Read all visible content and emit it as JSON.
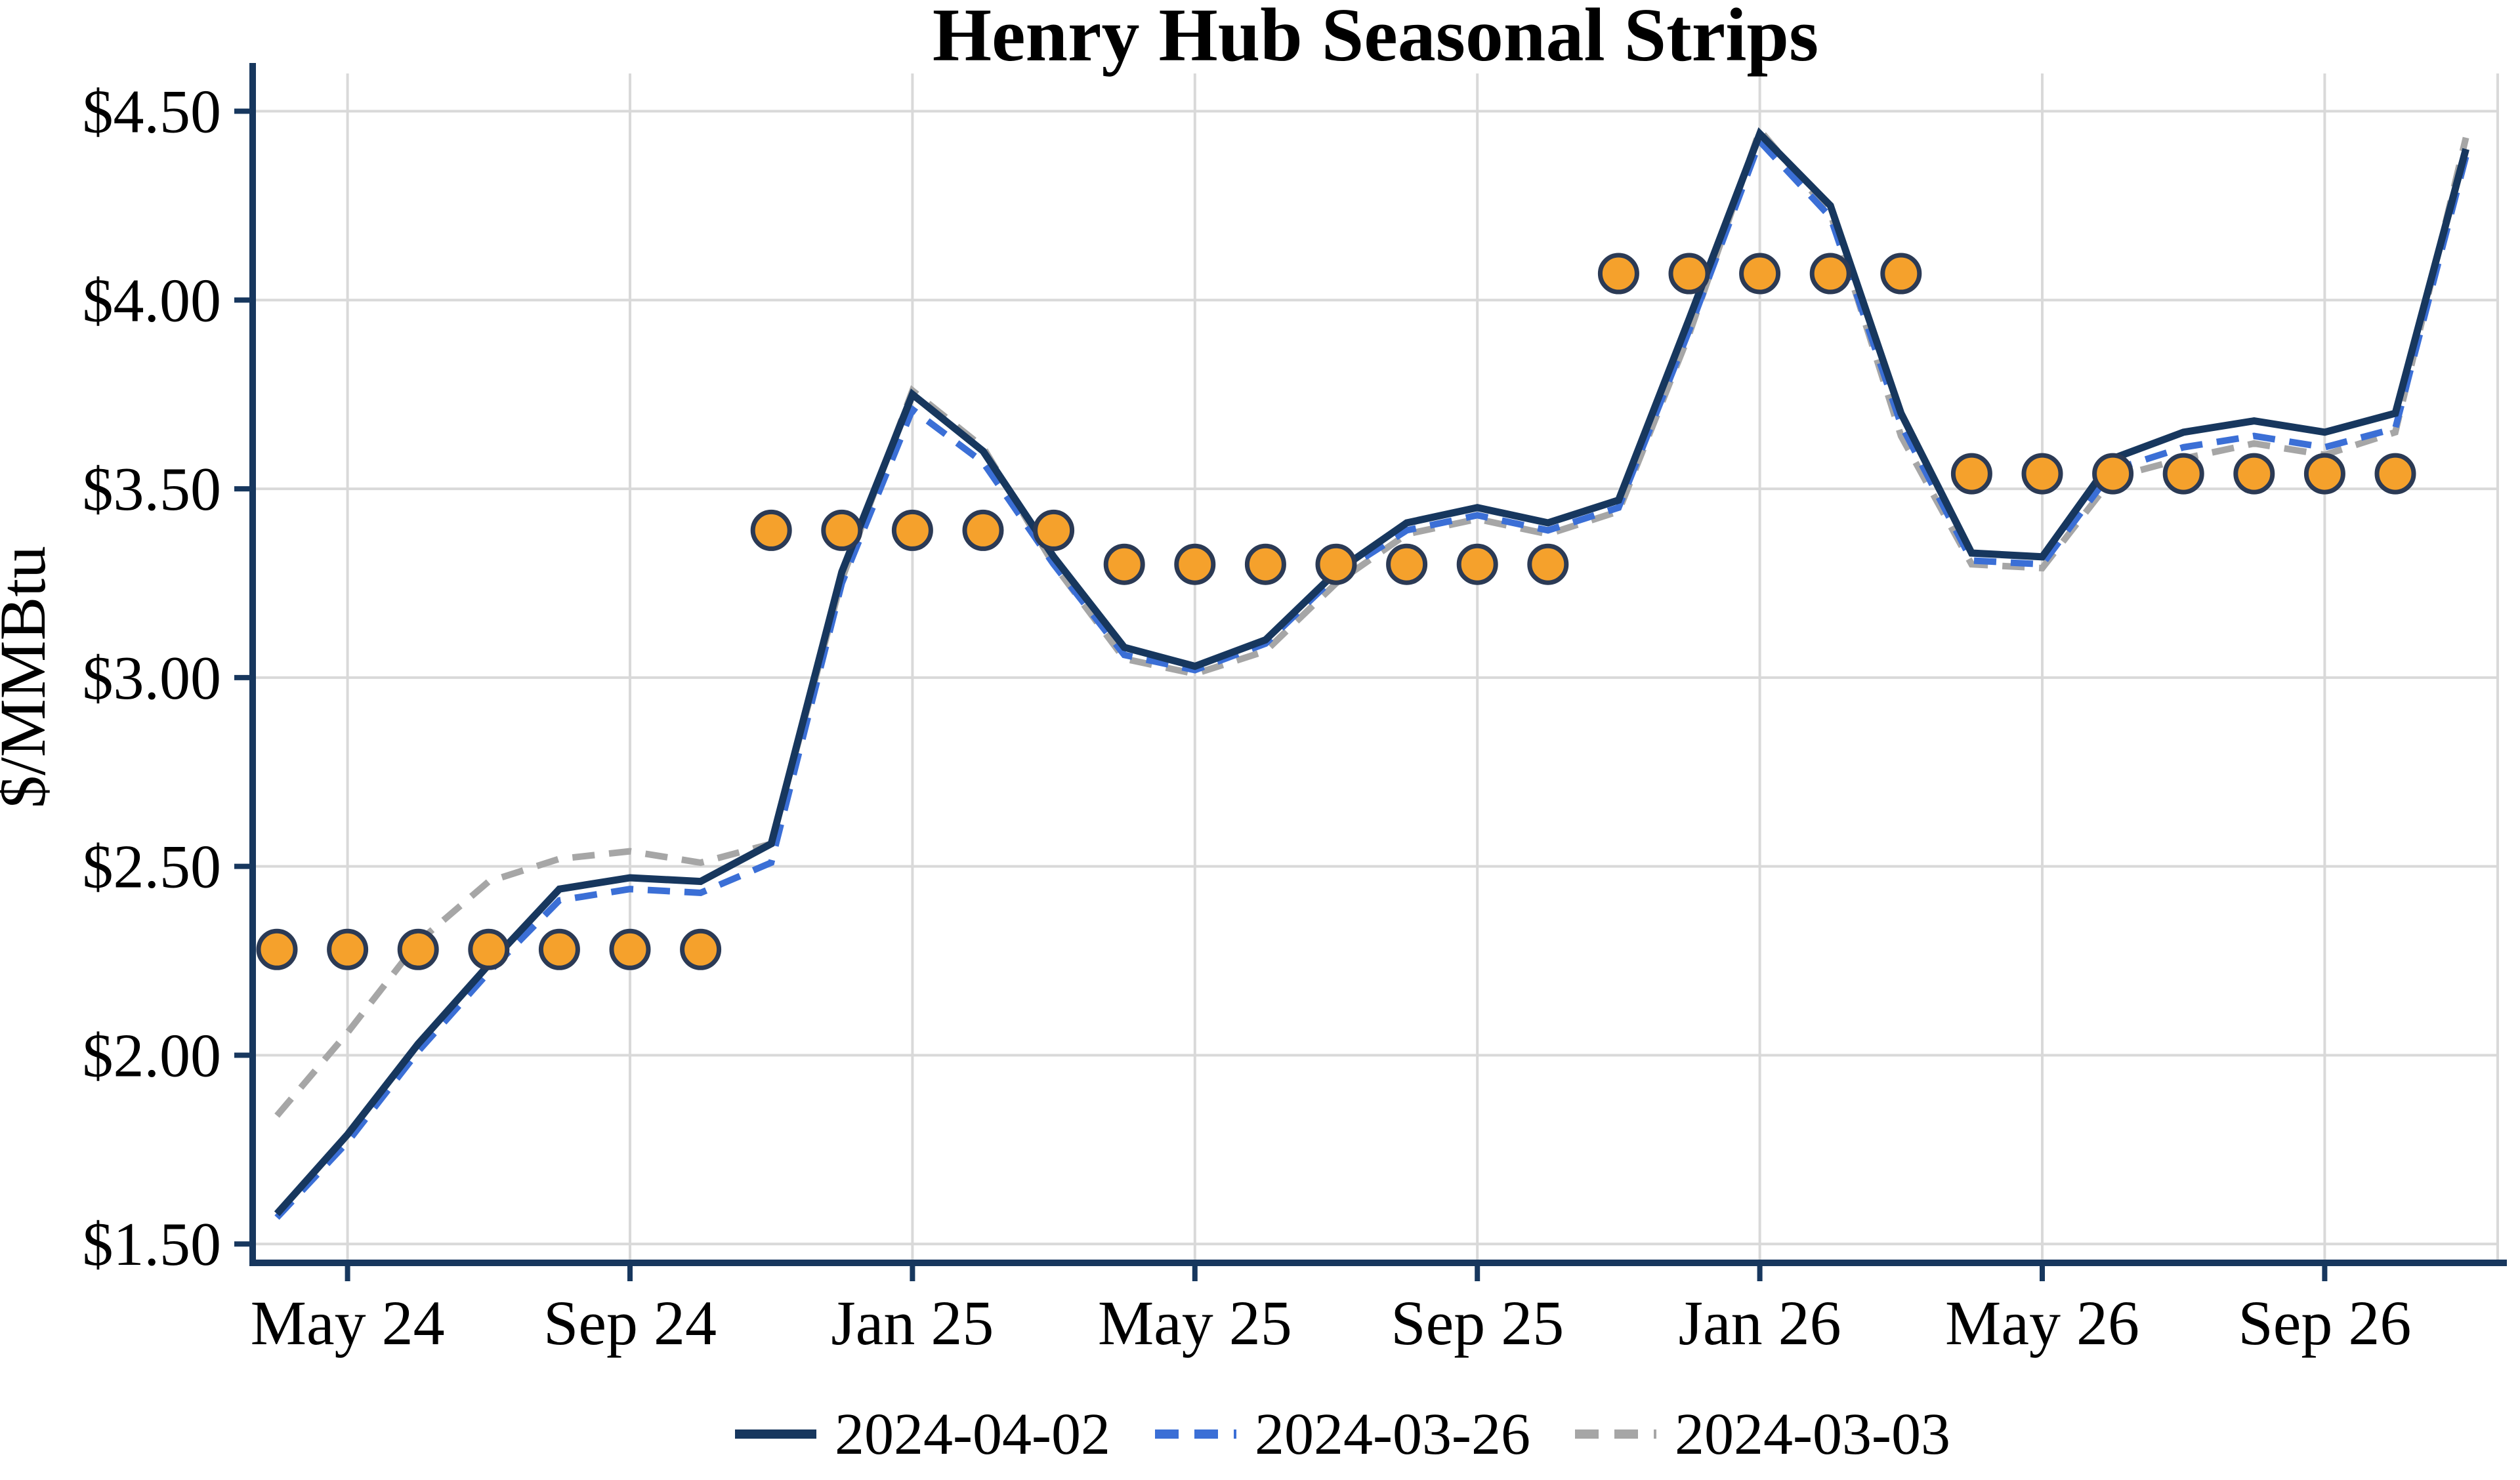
{
  "chart_data": {
    "type": "line",
    "title": "Henry Hub Seasonal Strips",
    "ylabel": "$/MMBtu",
    "xlabel": "",
    "grid": true,
    "legend_position": "bottom",
    "ylim": [
      1.45,
      4.6
    ],
    "y_ticks": [
      {
        "value": 1.5,
        "label": "$1.50"
      },
      {
        "value": 2.0,
        "label": "$2.00"
      },
      {
        "value": 2.5,
        "label": "$2.50"
      },
      {
        "value": 3.0,
        "label": "$3.00"
      },
      {
        "value": 3.5,
        "label": "$3.50"
      },
      {
        "value": 4.0,
        "label": "$4.00"
      },
      {
        "value": 4.5,
        "label": "$4.50"
      }
    ],
    "x_ticks": [
      "May 24",
      "Sep 24",
      "Jan 25",
      "May 25",
      "Sep 25",
      "Jan 26",
      "May 26",
      "Sep 26"
    ],
    "categories": [
      "Apr 24",
      "May 24",
      "Jun 24",
      "Jul 24",
      "Aug 24",
      "Sep 24",
      "Oct 24",
      "Nov 24",
      "Dec 24",
      "Jan 25",
      "Feb 25",
      "Mar 25",
      "Apr 25",
      "May 25",
      "Jun 25",
      "Jul 25",
      "Aug 25",
      "Sep 25",
      "Oct 25",
      "Nov 25",
      "Dec 25",
      "Jan 26",
      "Feb 26",
      "Mar 26",
      "Apr 26",
      "May 26",
      "Jun 26",
      "Jul 26",
      "Aug 26",
      "Sep 26",
      "Oct 26",
      "Nov 26"
    ],
    "series": [
      {
        "name": "2024-04-02",
        "color": "#17375E",
        "style": "solid",
        "values": [
          1.58,
          1.79,
          2.03,
          2.24,
          2.44,
          2.47,
          2.46,
          2.56,
          3.28,
          3.75,
          3.6,
          3.32,
          3.08,
          3.03,
          3.1,
          3.28,
          3.41,
          3.45,
          3.41,
          3.47,
          3.95,
          4.44,
          4.25,
          3.7,
          3.33,
          3.32,
          3.58,
          3.65,
          3.68,
          3.65,
          3.7,
          4.4
        ]
      },
      {
        "name": "2024-03-26",
        "color": "#3B6FD6",
        "style": "dashed",
        "values": [
          1.57,
          1.77,
          2.01,
          2.22,
          2.41,
          2.44,
          2.43,
          2.51,
          3.25,
          3.71,
          3.57,
          3.3,
          3.06,
          3.02,
          3.09,
          3.27,
          3.39,
          3.43,
          3.39,
          3.45,
          3.92,
          4.42,
          4.22,
          3.67,
          3.31,
          3.3,
          3.55,
          3.61,
          3.64,
          3.61,
          3.66,
          4.38
        ]
      },
      {
        "name": "2024-03-03",
        "color": "#A6A6A6",
        "style": "dashed",
        "values": [
          1.84,
          2.06,
          2.3,
          2.46,
          2.52,
          2.54,
          2.51,
          2.56,
          3.26,
          3.76,
          3.61,
          3.3,
          3.05,
          3.01,
          3.07,
          3.25,
          3.38,
          3.42,
          3.38,
          3.44,
          3.91,
          4.45,
          4.23,
          3.64,
          3.3,
          3.29,
          3.53,
          3.58,
          3.62,
          3.59,
          3.65,
          4.43
        ]
      }
    ],
    "strip_markers": {
      "fill": "#F5A12C",
      "edge": "#2B3A55",
      "groups": [
        {
          "months": [
            "Apr 24",
            "May 24",
            "Jun 24",
            "Jul 24",
            "Aug 24",
            "Sep 24",
            "Oct 24"
          ],
          "value": 2.28
        },
        {
          "months": [
            "Nov 24",
            "Dec 24",
            "Jan 25",
            "Feb 25",
            "Mar 25"
          ],
          "value": 3.39
        },
        {
          "months": [
            "Apr 25",
            "May 25",
            "Jun 25",
            "Jul 25",
            "Aug 25",
            "Sep 25",
            "Oct 25"
          ],
          "value": 3.3
        },
        {
          "months": [
            "Nov 25",
            "Dec 25",
            "Jan 26",
            "Feb 26",
            "Mar 26"
          ],
          "value": 4.07
        },
        {
          "months": [
            "Apr 26",
            "May 26",
            "Jun 26",
            "Jul 26",
            "Aug 26",
            "Sep 26",
            "Oct 26"
          ],
          "value": 3.54
        }
      ]
    },
    "colors": {
      "axis": "#17375E",
      "grid": "#D9D9D9",
      "background": "#FFFFFF"
    }
  }
}
